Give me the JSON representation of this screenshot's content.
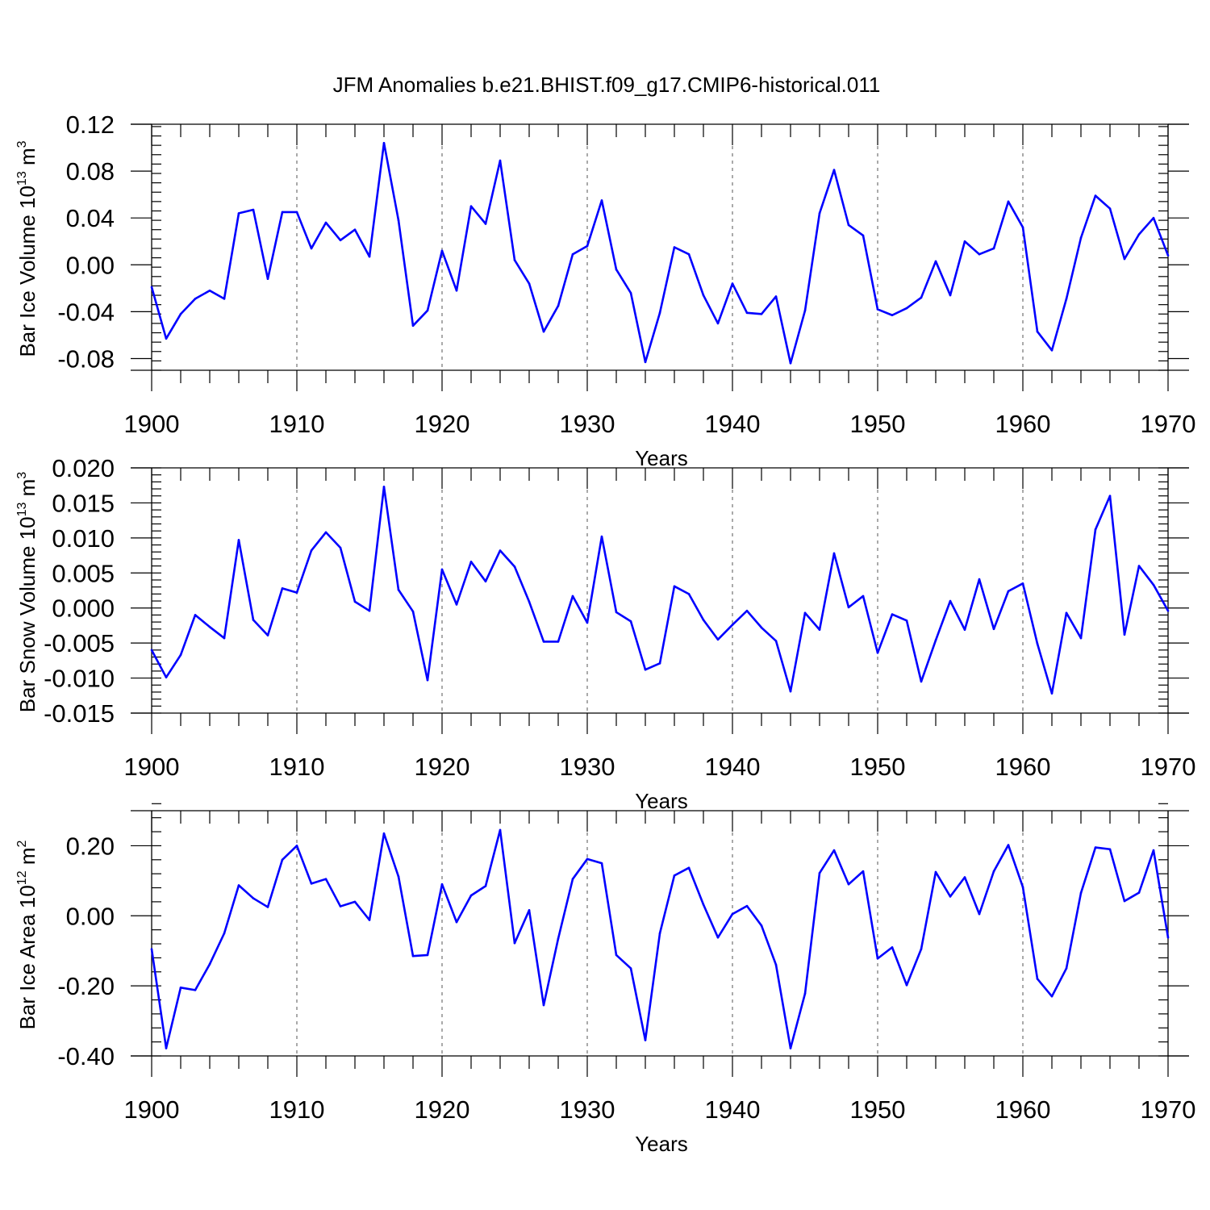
{
  "figure": {
    "title": "JFM Anomalies b.e21.BHIST.f09_g17.CMIP6-historical.011"
  },
  "colors": {
    "series": "#0000ff",
    "axis": "#000000",
    "grid": "#555555"
  },
  "chart_data": [
    {
      "type": "line",
      "title": "JFM Anomalies b.e21.BHIST.f09_g17.CMIP6-historical.011",
      "xlabel": "Years",
      "ylabel": {
        "base": "Bar Ice Volume 10",
        "exponent": "13",
        "unit": " m",
        "unit_exponent": "3"
      },
      "xlim": [
        1900,
        1970
      ],
      "ylim": [
        -0.09,
        0.12
      ],
      "x_ticks": [
        1900,
        1910,
        1920,
        1930,
        1940,
        1950,
        1960,
        1970
      ],
      "x_tick_labels": [
        "1900",
        "1910",
        "1920",
        "1930",
        "1940",
        "1950",
        "1960",
        "1970"
      ],
      "y_ticks": [
        -0.08,
        -0.04,
        0.0,
        0.04,
        0.08,
        0.12
      ],
      "y_tick_labels": [
        "-0.08",
        "-0.04",
        "0.00",
        "0.04",
        "0.08",
        "0.12"
      ],
      "y_minor_step": 0.008,
      "grid": "vertical dashed at major x ticks",
      "x": [
        1900,
        1901,
        1902,
        1903,
        1904,
        1905,
        1906,
        1907,
        1908,
        1909,
        1910,
        1911,
        1912,
        1913,
        1914,
        1915,
        1916,
        1917,
        1918,
        1919,
        1920,
        1921,
        1922,
        1923,
        1924,
        1925,
        1926,
        1927,
        1928,
        1929,
        1930,
        1931,
        1932,
        1933,
        1934,
        1935,
        1936,
        1937,
        1938,
        1939,
        1940,
        1941,
        1942,
        1943,
        1944,
        1945,
        1946,
        1947,
        1948,
        1949,
        1950,
        1951,
        1952,
        1953,
        1954,
        1955,
        1956,
        1957,
        1958,
        1959,
        1960,
        1961,
        1962,
        1963,
        1964,
        1965,
        1966,
        1967,
        1968,
        1969,
        1970
      ],
      "series": [
        {
          "name": "Bar Ice Volume",
          "values": [
            -0.019,
            -0.063,
            -0.042,
            -0.029,
            -0.022,
            -0.029,
            0.044,
            0.047,
            -0.012,
            0.045,
            0.045,
            0.014,
            0.036,
            0.021,
            0.03,
            0.007,
            0.104,
            0.038,
            -0.052,
            -0.039,
            0.012,
            -0.022,
            0.05,
            0.035,
            0.089,
            0.004,
            -0.016,
            -0.057,
            -0.035,
            0.009,
            0.016,
            0.055,
            -0.004,
            -0.024,
            -0.083,
            -0.041,
            0.015,
            0.009,
            -0.026,
            -0.05,
            -0.016,
            -0.041,
            -0.042,
            -0.027,
            -0.084,
            -0.039,
            0.044,
            0.081,
            0.034,
            0.025,
            -0.038,
            -0.043,
            -0.037,
            -0.028,
            0.003,
            -0.026,
            0.02,
            0.009,
            0.014,
            0.054,
            0.032,
            -0.057,
            -0.073,
            -0.029,
            0.023,
            0.059,
            0.048,
            0.005,
            0.026,
            0.04,
            0.008
          ]
        }
      ]
    },
    {
      "type": "line",
      "xlabel": "Years",
      "ylabel": {
        "base": "Bar Snow Volume 10",
        "exponent": "13",
        "unit": " m",
        "unit_exponent": "3"
      },
      "xlim": [
        1900,
        1970
      ],
      "ylim": [
        -0.015,
        0.02
      ],
      "x_ticks": [
        1900,
        1910,
        1920,
        1930,
        1940,
        1950,
        1960,
        1970
      ],
      "x_tick_labels": [
        "1900",
        "1910",
        "1920",
        "1930",
        "1940",
        "1950",
        "1960",
        "1970"
      ],
      "y_ticks": [
        -0.015,
        -0.01,
        -0.005,
        0.0,
        0.005,
        0.01,
        0.015,
        0.02
      ],
      "y_tick_labels": [
        "-0.015",
        "-0.010",
        "-0.005",
        "0.000",
        "0.005",
        "0.010",
        "0.015",
        "0.020"
      ],
      "y_minor_step": 0.001,
      "grid": "vertical dashed at major x ticks",
      "x": [
        1900,
        1901,
        1902,
        1903,
        1904,
        1905,
        1906,
        1907,
        1908,
        1909,
        1910,
        1911,
        1912,
        1913,
        1914,
        1915,
        1916,
        1917,
        1918,
        1919,
        1920,
        1921,
        1922,
        1923,
        1924,
        1925,
        1926,
        1927,
        1928,
        1929,
        1930,
        1931,
        1932,
        1933,
        1934,
        1935,
        1936,
        1937,
        1938,
        1939,
        1940,
        1941,
        1942,
        1943,
        1944,
        1945,
        1946,
        1947,
        1948,
        1949,
        1950,
        1951,
        1952,
        1953,
        1954,
        1955,
        1956,
        1957,
        1958,
        1959,
        1960,
        1961,
        1962,
        1963,
        1964,
        1965,
        1966,
        1967,
        1968,
        1969,
        1970
      ],
      "series": [
        {
          "name": "Bar Snow Volume",
          "values": [
            -0.006,
            -0.0099,
            -0.0067,
            -0.001,
            -0.0027,
            -0.0043,
            0.0097,
            -0.0017,
            -0.0039,
            0.0028,
            0.0022,
            0.0082,
            0.0108,
            0.0086,
            0.0009,
            -0.0004,
            0.0173,
            0.0026,
            -0.0005,
            -0.0103,
            0.0055,
            0.0005,
            0.0066,
            0.0038,
            0.0082,
            0.0059,
            0.0009,
            -0.0048,
            -0.0048,
            0.0017,
            -0.0021,
            0.0102,
            -0.0006,
            -0.0019,
            -0.0088,
            -0.0079,
            0.0031,
            0.002,
            -0.0017,
            -0.0045,
            -0.0024,
            -0.0004,
            -0.0028,
            -0.0047,
            -0.0119,
            -0.0007,
            -0.0031,
            0.0078,
            0.0001,
            0.0017,
            -0.0064,
            -0.0009,
            -0.0018,
            -0.0105,
            -0.0046,
            0.001,
            -0.0031,
            0.0041,
            -0.003,
            0.0024,
            0.0035,
            -0.0051,
            -0.0122,
            -0.0007,
            -0.0043,
            0.0112,
            0.016,
            -0.0038,
            0.006,
            0.0033,
            -0.0004
          ]
        }
      ]
    },
    {
      "type": "line",
      "xlabel": "Years",
      "ylabel": {
        "base": "Bar Ice Area 10",
        "exponent": "12",
        "unit": " m",
        "unit_exponent": "2"
      },
      "xlim": [
        1900,
        1970
      ],
      "ylim": [
        -0.4,
        0.3
      ],
      "x_ticks": [
        1900,
        1910,
        1920,
        1930,
        1940,
        1950,
        1960,
        1970
      ],
      "x_tick_labels": [
        "1900",
        "1910",
        "1920",
        "1930",
        "1940",
        "1950",
        "1960",
        "1970"
      ],
      "y_ticks": [
        -0.4,
        -0.2,
        0.0,
        0.2
      ],
      "y_tick_labels": [
        "-0.40",
        "-0.20",
        "0.00",
        "0.20"
      ],
      "y_minor_step": 0.04,
      "grid": "vertical dashed at major x ticks",
      "x": [
        1900,
        1901,
        1902,
        1903,
        1904,
        1905,
        1906,
        1907,
        1908,
        1909,
        1910,
        1911,
        1912,
        1913,
        1914,
        1915,
        1916,
        1917,
        1918,
        1919,
        1920,
        1921,
        1922,
        1923,
        1924,
        1925,
        1926,
        1927,
        1928,
        1929,
        1930,
        1931,
        1932,
        1933,
        1934,
        1935,
        1936,
        1937,
        1938,
        1939,
        1940,
        1941,
        1942,
        1943,
        1944,
        1945,
        1946,
        1947,
        1948,
        1949,
        1950,
        1951,
        1952,
        1953,
        1954,
        1955,
        1956,
        1957,
        1958,
        1959,
        1960,
        1961,
        1962,
        1963,
        1964,
        1965,
        1966,
        1967,
        1968,
        1969,
        1970
      ],
      "series": [
        {
          "name": "Bar Ice Area",
          "values": [
            -0.095,
            -0.378,
            -0.205,
            -0.212,
            -0.138,
            -0.05,
            0.087,
            0.05,
            0.025,
            0.16,
            0.2,
            0.092,
            0.105,
            0.027,
            0.04,
            -0.012,
            0.235,
            0.112,
            -0.115,
            -0.112,
            0.09,
            -0.018,
            0.058,
            0.085,
            0.245,
            -0.078,
            0.016,
            -0.255,
            -0.065,
            0.105,
            0.162,
            0.15,
            -0.112,
            -0.15,
            -0.355,
            -0.05,
            0.115,
            0.137,
            0.032,
            -0.062,
            0.005,
            0.028,
            -0.028,
            -0.14,
            -0.378,
            -0.222,
            0.122,
            0.187,
            0.09,
            0.127,
            -0.122,
            -0.09,
            -0.198,
            -0.095,
            0.125,
            0.055,
            0.11,
            0.005,
            0.127,
            0.202,
            0.082,
            -0.18,
            -0.23,
            -0.15,
            0.065,
            0.195,
            0.19,
            0.042,
            0.066,
            0.187,
            -0.062
          ]
        }
      ]
    }
  ]
}
